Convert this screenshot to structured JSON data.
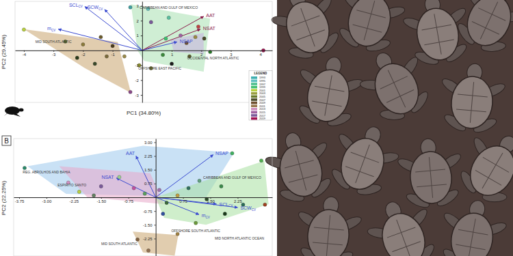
{
  "chart_data": [
    {
      "type": "biplot",
      "x_label": "PC1 (34.80%)",
      "y_label": "PC2 (29.45%)",
      "xlim": [
        -4.3,
        4.4
      ],
      "ylim": [
        -3.5,
        3.3
      ],
      "xticks": [
        -4,
        -3,
        -2,
        -1,
        1,
        2,
        3,
        4
      ],
      "yticks": [
        -3,
        -2,
        -1,
        1,
        2,
        3
      ],
      "x": [
        -4.0,
        -2.6,
        -2.0,
        -1.4,
        -1.0,
        -1.6,
        -1.2,
        -0.6,
        -0.4,
        -2.2,
        -0.4,
        0.2,
        0.3,
        0.8,
        0.9,
        1.3,
        1.5,
        1.8,
        1.9,
        2.1,
        1.6,
        1.0,
        0.3,
        0.7,
        4.1,
        2.3,
        -0.1
      ],
      "y": [
        1.4,
        0.6,
        0.4,
        0.9,
        0.3,
        -0.9,
        -0.4,
        -0.4,
        -2.8,
        -0.5,
        2.9,
        2.8,
        1.9,
        0.8,
        2.2,
        1.0,
        0.5,
        0.9,
        1.6,
        0.8,
        -0.4,
        -0.9,
        -1.2,
        -0.3,
        0.0,
        -0.1,
        -1.0
      ],
      "colors": [
        "#b8d040",
        "#5a6a2a",
        "#8a7a3a",
        "#6a5a2a",
        "#4a3a1a",
        "#3a4a2a",
        "#7a6a3a",
        "#9a8a4a",
        "#8a4a8a",
        "#2a3a1a",
        "#40a0a0",
        "#60c0c0",
        "#7a5a9a",
        "#40c070",
        "#5ac0a0",
        "#a060a0",
        "#705030",
        "#9a8a40",
        "#c04040",
        "#4a4a2a",
        "#5a5a2a",
        "#1a1a1a",
        "#6a6a2a",
        "#3a8a3a",
        "#a01050",
        "#2a7a2a",
        "#8a8a2a"
      ],
      "groups": [
        {
          "name": "MID SOUTH ATLANTIC",
          "color": "#c8a46e",
          "x": [
            -4.0,
            -0.83,
            -0.38,
            -1.94
          ],
          "y": [
            1.43,
            0.57,
            -2.86,
            -1.19
          ]
        },
        {
          "name": "CARIBBEAN AND GULF OF MEXICO",
          "color": "#a8e0b0",
          "x": [
            -0.38,
            2.3,
            2.08,
            0.07,
            -0.16
          ],
          "y": [
            3.1,
            2.14,
            -1.43,
            -0.71,
            0
          ]
        },
        {
          "name": "OCCIDENTAL NORTH ATLANTIC",
          "color": "#c8b0e0",
          "x": [
            0.96,
            2.08,
            2.08,
            1.07
          ],
          "y": [
            0.71,
            1.19,
            -0.24,
            -0.1
          ]
        }
      ],
      "annotations": [
        "OFFSHORE EAST PACIFIC"
      ],
      "vectors": [
        {
          "name": "SCL",
          "subscript": "CV",
          "color": "#3a4ad0",
          "x": -1.94,
          "y": 2.95
        },
        {
          "name": "SCW",
          "subscript": "CV",
          "color": "#3a4ad0",
          "x": -1.27,
          "y": 2.76
        },
        {
          "name": "m",
          "subscript": "CV",
          "color": "#3a4ad0",
          "x": -2.84,
          "y": 1.43
        },
        {
          "name": "AAT",
          "color": "#8a1a4a",
          "x": 2.08,
          "y": 2.29
        },
        {
          "name": "NSAT",
          "color": "#8a1a4a",
          "x": 1.97,
          "y": 1.43
        },
        {
          "name": "NSAP",
          "color": "#3a4ad0",
          "x": 1.18,
          "y": 0.57
        }
      ],
      "legend": "lower right",
      "legend_title": "LEGEND",
      "legend_entries": [
        {
          "name": "1993",
          "color": "#40b0b0"
        },
        {
          "name": "1995",
          "color": "#60c0c0"
        },
        {
          "name": "1997",
          "color": "#50c090"
        },
        {
          "name": "1999",
          "color": "#40c070"
        },
        {
          "name": "2001",
          "color": "#b8d040"
        },
        {
          "name": "2003",
          "color": "#9aa040"
        },
        {
          "name": "2005",
          "color": "#6a7a2a"
        },
        {
          "name": "2007",
          "color": "#4a4a2a"
        },
        {
          "name": "2009",
          "color": "#705030"
        },
        {
          "name": "2011",
          "color": "#9a7a50"
        },
        {
          "name": "2013",
          "color": "#d090c0"
        },
        {
          "name": "2015",
          "color": "#a060a0"
        },
        {
          "name": "2017",
          "color": "#7a5a9a"
        },
        {
          "name": "2019",
          "color": "#a01050"
        }
      ]
    },
    {
      "type": "biplot",
      "panel_label": "B",
      "y_label": "PC2 (22.25%)",
      "xlim": [
        -3.9,
        3.2
      ],
      "ylim": [
        -3.2,
        3.2
      ],
      "xticks": [
        -3.75,
        {
          "value": -3,
          "label": "-3.00"
        },
        -2.25,
        {
          "value": -1.5,
          "label": "-1.50"
        },
        -0.75,
        0.75,
        {
          "value": 1.5,
          "label": "1.50"
        },
        2.25
      ],
      "yticks": [
        {
          "value": 3,
          "label": "3.00"
        },
        2.25,
        {
          "value": 1.5,
          "label": "1.50"
        },
        0.75,
        -0.75,
        {
          "value": -1.5,
          "label": "-1.50"
        },
        -2.25
      ],
      "x": [
        -3.6,
        -2.4,
        -2.1,
        -1.5,
        -1.0,
        -0.6,
        -0.3,
        0.1,
        0.3,
        0.6,
        0.9,
        1.2,
        1.4,
        1.8,
        2.1,
        2.9,
        1.9,
        1.1,
        0.6,
        -0.5,
        -0.2,
        0.2,
        -1.7,
        2.4,
        3.0
      ],
      "y": [
        1.6,
        0.8,
        0.3,
        0.6,
        1.1,
        0.5,
        0.2,
        0.4,
        -0.3,
        0.1,
        0.5,
        0.9,
        -0.1,
        0.6,
        2.4,
        2.0,
        -0.9,
        -1.4,
        -2.0,
        -2.3,
        -2.9,
        -0.9,
        0.1,
        -0.4,
        -0.4
      ],
      "colors": [
        "#2a8a6a",
        "#d090c0",
        "#b8d040",
        "#7a5a9a",
        "#9ad090",
        "#c050a0",
        "#5aa060",
        "#a070b0",
        "#3a6a3a",
        "#c0a040",
        "#307060",
        "#60a080",
        "#2a4a2a",
        "#3a8a4a",
        "#40b060",
        "#50b050",
        "#1a3a1a",
        "#6a9a3a",
        "#a08040",
        "#806040",
        "#907050",
        "#3050a0",
        "#608060",
        "#2a6a5a",
        "#a04020"
      ],
      "groups": [
        {
          "name": "REG. ABROLHOS AND BAHIA",
          "color": "#9cc8ec",
          "x": [
            -3.52,
            -0.35,
            2.15,
            1.38,
            -2.46
          ],
          "y": [
            1.69,
            2.81,
            2.43,
            0,
            0.19
          ]
        },
        {
          "name": "ESPIRITO SANTO",
          "color": "#e8a8c8",
          "x": [
            -2.65,
            -0.15,
            0.23,
            -1.88
          ],
          "y": [
            1.69,
            1.31,
            -0.37,
            0
          ]
        },
        {
          "name": "CARIBBEAN AND GULF OF MEXICO",
          "color": "#a8e0a0",
          "x": [
            0,
            2.98,
            3.1,
            1.38,
            0.23
          ],
          "y": [
            0,
            1.99,
            -0.37,
            -1.5,
            -1.12
          ]
        },
        {
          "name": "MID SOUTH ATLANTIC",
          "color": "#c8a46e",
          "x": [
            -0.63,
            0.62,
            0.52,
            -0.35
          ],
          "y": [
            -1.87,
            -2.06,
            -3.18,
            -3.0
          ]
        }
      ],
      "annotations": [
        "OFFSHORE SOUTH ATLANTIC",
        "MID NORTH ATLANTIC OCEAN"
      ],
      "vectors": [
        {
          "name": "AAT",
          "color": "#3a4ad0",
          "x": -0.54,
          "y": 2.25
        },
        {
          "name": "NSAT",
          "color": "#3a4ad0",
          "x": -1.08,
          "y": 1.05
        },
        {
          "name": "NSAP",
          "color": "#3a4ad0",
          "x": 1.58,
          "y": 2.32
        },
        {
          "name": "SCL",
          "subscript": "CV",
          "color": "#3a4ad0",
          "x": 1.67,
          "y": -0.37
        },
        {
          "name": "SCW",
          "subscript": "CV",
          "color": "#3a4ad0",
          "x": 2.25,
          "y": -0.56
        },
        {
          "name": "m",
          "subscript": "CV",
          "color": "#3a4ad0",
          "x": 1.19,
          "y": -0.94
        }
      ]
    }
  ]
}
